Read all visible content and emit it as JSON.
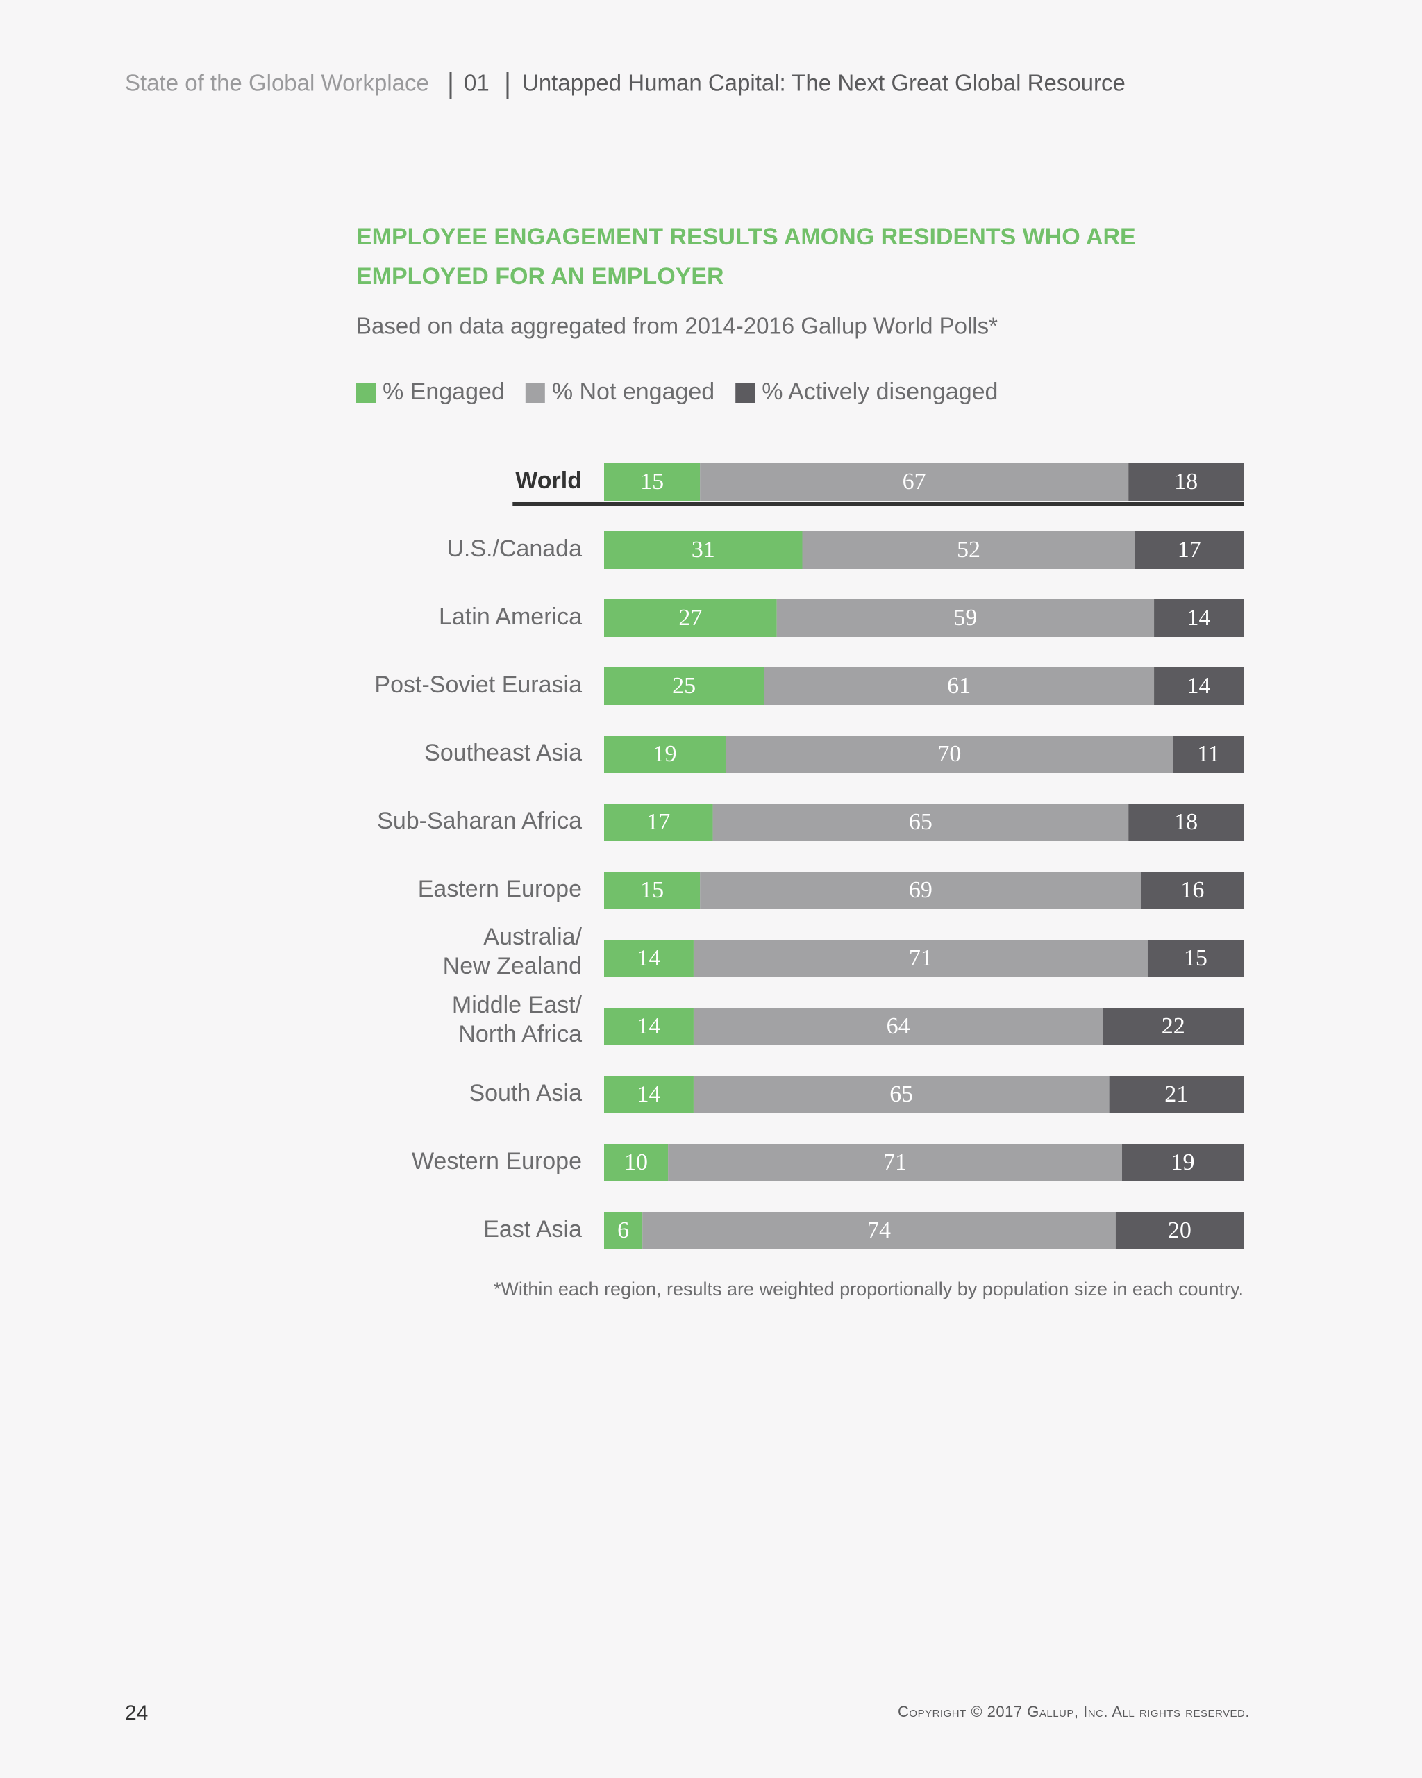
{
  "header": {
    "report": "State of the Global Workplace",
    "chapter": "01",
    "section": "Untapped Human Capital: The Next Great Global Resource"
  },
  "chart_data": {
    "type": "stacked-bar",
    "orientation": "horizontal",
    "title": "EMPLOYEE ENGAGEMENT RESULTS AMONG RESIDENTS WHO ARE EMPLOYED FOR AN EMPLOYER",
    "subtitle": "Based on data aggregated from 2014-2016 Gallup World Polls*",
    "categories": [
      "World",
      "U.S./Canada",
      "Latin America",
      "Post-Soviet Eurasia",
      "Southeast Asia",
      "Sub-Saharan Africa",
      "Eastern Europe",
      "Australia/\nNew Zealand",
      "Middle East/\nNorth Africa",
      "South Asia",
      "Western Europe",
      "East Asia"
    ],
    "series": [
      {
        "name": "% Engaged",
        "color": "#72c06a",
        "values": [
          15,
          31,
          27,
          25,
          19,
          17,
          15,
          14,
          14,
          14,
          10,
          6
        ]
      },
      {
        "name": "% Not engaged",
        "color": "#a2a2a4",
        "values": [
          67,
          52,
          59,
          61,
          70,
          65,
          69,
          71,
          64,
          65,
          71,
          74
        ]
      },
      {
        "name": "% Actively disengaged",
        "color": "#5c5b5f",
        "values": [
          18,
          17,
          14,
          14,
          11,
          18,
          16,
          15,
          22,
          21,
          19,
          20
        ]
      }
    ],
    "xlim": [
      0,
      100
    ],
    "legend": "top-left",
    "footnote": "*Within each region, results are weighted proportionally by population size in each country."
  },
  "footer": {
    "page": "24",
    "copyright": "Copyright © 2017 Gallup, Inc. All rights reserved."
  }
}
